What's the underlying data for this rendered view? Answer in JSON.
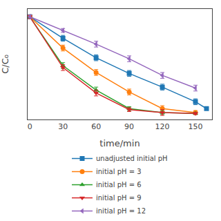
{
  "chart_data": {
    "type": "line",
    "xlabel": "time/min",
    "ylabel": "C/C₀",
    "xlim": [
      -2,
      165
    ],
    "xticks": [
      0,
      30,
      60,
      90,
      120,
      150
    ],
    "ylim": [
      -0.05,
      1.08
    ],
    "yticks": [],
    "tick_labels": "x",
    "grid": false,
    "legend": "bottom",
    "series": [
      {
        "name": "unadjusted initial pH",
        "marker": "square",
        "x": [
          0,
          30,
          60,
          90,
          120,
          150,
          160
        ],
        "values": [
          1.0,
          0.78,
          0.58,
          0.42,
          0.28,
          0.13,
          0.06
        ],
        "errors": [
          0.02,
          0.03,
          0.03,
          0.03,
          0.03,
          0.03,
          0.0
        ]
      },
      {
        "name": "initial pH = 3",
        "marker": "circle",
        "x": [
          0,
          30,
          60,
          90,
          120,
          150
        ],
        "values": [
          1.0,
          0.68,
          0.43,
          0.23,
          0.06,
          0.02
        ],
        "errors": [
          0.02,
          0.03,
          0.03,
          0.03,
          0.03,
          0.02
        ]
      },
      {
        "name": "initial pH = 6",
        "marker": "triangle-up",
        "x": [
          0,
          30,
          60,
          90,
          120,
          150
        ],
        "values": [
          1.0,
          0.5,
          0.25,
          0.06,
          0.02,
          0.01
        ],
        "errors": [
          0.02,
          0.03,
          0.03,
          0.02,
          0.02,
          0.01
        ]
      },
      {
        "name": "initial pH = 9",
        "marker": "triangle-down",
        "x": [
          0,
          30,
          60,
          90,
          120,
          150
        ],
        "values": [
          1.0,
          0.48,
          0.22,
          0.05,
          0.02,
          0.01
        ],
        "errors": [
          0.02,
          0.03,
          0.03,
          0.02,
          0.03,
          0.01
        ]
      },
      {
        "name": "initial pH = 12",
        "marker": "triangle-left",
        "x": [
          0,
          30,
          60,
          90,
          120,
          150
        ],
        "values": [
          1.0,
          0.86,
          0.72,
          0.57,
          0.4,
          0.27
        ],
        "errors": [
          0.02,
          0.02,
          0.03,
          0.03,
          0.03,
          0.03
        ]
      }
    ]
  }
}
